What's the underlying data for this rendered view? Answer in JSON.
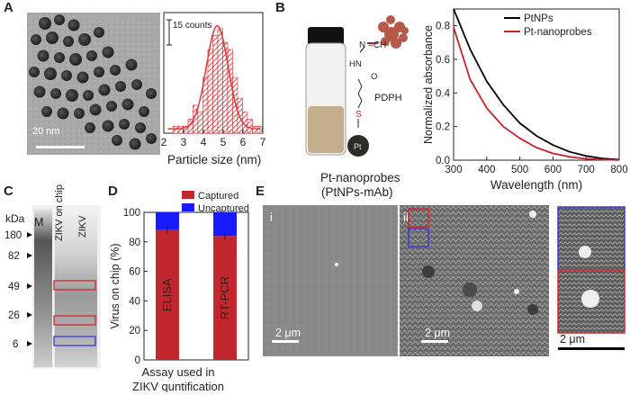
{
  "panels": {
    "A": {
      "letter": "A",
      "scale_bar_text": "20 nm",
      "inset_label": "15 counts",
      "chart_data": {
        "type": "bar",
        "title": "",
        "xlabel": "Particle size (nm)",
        "ylabel": "",
        "xticks": [
          "2",
          "3",
          "4",
          "5",
          "6",
          "7"
        ],
        "xlim": [
          2,
          7
        ],
        "bins": [
          2.6,
          2.85,
          3.1,
          3.35,
          3.6,
          3.85,
          4.1,
          4.35,
          4.6,
          4.85,
          5.1,
          5.35,
          5.6,
          5.85,
          6.1,
          6.35,
          6.6,
          6.85
        ],
        "values": [
          1,
          1,
          1,
          2,
          4,
          3,
          8,
          12,
          14,
          15,
          13,
          12,
          8,
          5,
          3,
          2,
          1,
          1
        ],
        "fit": "gaussian",
        "fit_center": 4.7
      }
    },
    "B": {
      "letter": "B",
      "mol_labels": {
        "n_ch": "N =CH-",
        "hn": "HN",
        "o": "O",
        "s": "S",
        "pdph": "PDPH",
        "pt": "Pt"
      },
      "caption_line1": "Pt-nanoprobes",
      "caption_line2": "(PtNPs-mAb)",
      "chart_data": {
        "type": "line",
        "title": "",
        "xlabel": "Wavelength (nm)",
        "ylabel": "Normalized absorbance",
        "xlim": [
          300,
          800
        ],
        "ylim": [
          0.0,
          0.9
        ],
        "xticks": [
          "300",
          "400",
          "500",
          "600",
          "700",
          "800"
        ],
        "yticks": [
          "0.0",
          "0.2",
          "0.4",
          "0.6",
          "0.8"
        ],
        "series": [
          {
            "name": "PtNPs",
            "color": "#000000",
            "x": [
              300,
              350,
              400,
              450,
              500,
              550,
              600,
              650,
              700,
              750,
              800
            ],
            "y": [
              0.9,
              0.66,
              0.47,
              0.33,
              0.22,
              0.145,
              0.09,
              0.05,
              0.025,
              0.01,
              0.003
            ]
          },
          {
            "name": "Pt-nanoprobes",
            "color": "#cc1f25",
            "x": [
              300,
              350,
              400,
              450,
              500,
              550,
              600,
              650,
              700,
              750,
              800
            ],
            "y": [
              0.79,
              0.48,
              0.31,
              0.2,
              0.13,
              0.075,
              0.04,
              0.02,
              0.008,
              0.003,
              0.001
            ]
          }
        ]
      }
    },
    "C": {
      "letter": "C",
      "kda": "kDa",
      "markers": [
        "180",
        "82",
        "49",
        "26",
        "6"
      ],
      "lanes": [
        "M",
        "ZIKV on chip",
        "ZIKV"
      ]
    },
    "D": {
      "letter": "D",
      "legend": [
        "Captured",
        "Uncaptured"
      ],
      "colors": {
        "captured": "#c0282d",
        "uncaptured": "#1a1aff"
      },
      "chart_data": {
        "type": "bar",
        "title": "",
        "xlabel": "Assay used in ZIKV quntification",
        "xlabel_line1": "Assay used in",
        "xlabel_line2": "ZIKV quntification",
        "ylabel": "Virus on chip (%)",
        "ylim": [
          0,
          100
        ],
        "yticks": [
          "0",
          "20",
          "40",
          "60",
          "80",
          "100"
        ],
        "categories": [
          "ELISA",
          "RT-PCR"
        ],
        "series": [
          {
            "name": "Captured",
            "values": [
              88,
              84
            ]
          },
          {
            "name": "Uncaptured",
            "values": [
              12,
              16
            ]
          }
        ]
      }
    },
    "E": {
      "letter": "E",
      "sub_i": "i",
      "sub_ii": "ii",
      "scale_1": "2 μm",
      "scale_2": "2 μm",
      "scale_3": "2 μm"
    }
  }
}
